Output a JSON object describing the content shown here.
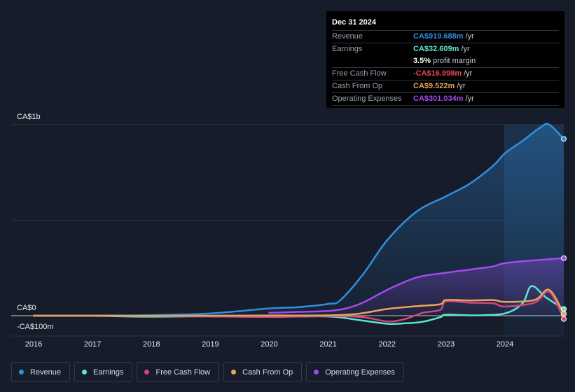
{
  "chart_data": {
    "type": "line",
    "y_top_label": "CA$1b",
    "y_zero_label": "CA$0",
    "y_bottom_label": "-CA$100m",
    "ylim": [
      -100,
      1000
    ],
    "x_ticks": [
      "2016",
      "2017",
      "2018",
      "2019",
      "2020",
      "2021",
      "2022",
      "2023",
      "2024"
    ],
    "series": [
      {
        "name": "Revenue",
        "color": "#2f8fe0",
        "fill": true,
        "points": [
          [
            2016,
            0
          ],
          [
            2017,
            1
          ],
          [
            2018,
            3
          ],
          [
            2019,
            12
          ],
          [
            2020,
            38
          ],
          [
            2020.5,
            45
          ],
          [
            2021,
            62
          ],
          [
            2021.2,
            80
          ],
          [
            2021.6,
            220
          ],
          [
            2022,
            395
          ],
          [
            2022.5,
            545
          ],
          [
            2023,
            625
          ],
          [
            2023.4,
            690
          ],
          [
            2023.8,
            785
          ],
          [
            2024,
            850
          ],
          [
            2024.3,
            915
          ],
          [
            2024.6,
            985
          ],
          [
            2024.75,
            1000
          ],
          [
            2025,
            925
          ]
        ]
      },
      {
        "name": "Earnings",
        "color": "#5ee6cf",
        "fill": false,
        "points": [
          [
            2016,
            0
          ],
          [
            2017,
            -1
          ],
          [
            2018,
            -5
          ],
          [
            2019,
            -3
          ],
          [
            2020,
            -6
          ],
          [
            2021,
            -4
          ],
          [
            2021.5,
            -22
          ],
          [
            2022,
            -42
          ],
          [
            2022.3,
            -40
          ],
          [
            2022.6,
            -32
          ],
          [
            2022.9,
            -8
          ],
          [
            2023,
            5
          ],
          [
            2023.5,
            2
          ],
          [
            2024,
            12
          ],
          [
            2024.3,
            65
          ],
          [
            2024.45,
            155
          ],
          [
            2024.7,
            95
          ],
          [
            2025,
            35
          ]
        ]
      },
      {
        "name": "Free Cash Flow",
        "color": "#d0457f",
        "fill": false,
        "points": [
          [
            2016,
            0
          ],
          [
            2017,
            -1
          ],
          [
            2018,
            -2
          ],
          [
            2019,
            -4
          ],
          [
            2020,
            -6
          ],
          [
            2021,
            -2
          ],
          [
            2021.6,
            -8
          ],
          [
            2022,
            -30
          ],
          [
            2022.3,
            -18
          ],
          [
            2022.6,
            15
          ],
          [
            2022.9,
            30
          ],
          [
            2023,
            75
          ],
          [
            2023.4,
            68
          ],
          [
            2023.8,
            65
          ],
          [
            2024,
            48
          ],
          [
            2024.5,
            68
          ],
          [
            2024.75,
            125
          ],
          [
            2025,
            -17
          ]
        ]
      },
      {
        "name": "Cash From Op",
        "color": "#e8a45c",
        "fill": false,
        "points": [
          [
            2016,
            0
          ],
          [
            2017,
            0
          ],
          [
            2018,
            -1
          ],
          [
            2019,
            0
          ],
          [
            2020,
            1
          ],
          [
            2021,
            2
          ],
          [
            2021.5,
            10
          ],
          [
            2022,
            35
          ],
          [
            2022.5,
            50
          ],
          [
            2022.9,
            60
          ],
          [
            2023,
            82
          ],
          [
            2023.4,
            80
          ],
          [
            2023.8,
            82
          ],
          [
            2024,
            72
          ],
          [
            2024.5,
            82
          ],
          [
            2024.75,
            135
          ],
          [
            2025,
            10
          ]
        ]
      },
      {
        "name": "Operating Expenses",
        "color": "#a24bef",
        "fill": true,
        "points": [
          [
            2020,
            15
          ],
          [
            2020.5,
            20
          ],
          [
            2021,
            25
          ],
          [
            2021.3,
            38
          ],
          [
            2021.6,
            70
          ],
          [
            2022,
            135
          ],
          [
            2022.5,
            200
          ],
          [
            2023,
            225
          ],
          [
            2023.5,
            245
          ],
          [
            2023.8,
            258
          ],
          [
            2024,
            275
          ],
          [
            2024.5,
            290
          ],
          [
            2025,
            301
          ]
        ]
      }
    ]
  },
  "tooltip": {
    "date": "Dec 31 2024",
    "rows": [
      {
        "label": "Revenue",
        "value": "CA$919.688m",
        "unit": "/yr",
        "color": "#2f8fe0"
      },
      {
        "label": "Earnings",
        "value": "CA$32.609m",
        "unit": "/yr",
        "color": "#5ee6cf"
      },
      {
        "label": "",
        "value": "3.5%",
        "unit": "profit margin",
        "color": "#ffffff"
      },
      {
        "label": "Free Cash Flow",
        "value": "-CA$16.998m",
        "unit": "/yr",
        "color": "#e8464c"
      },
      {
        "label": "Cash From Op",
        "value": "CA$9.522m",
        "unit": "/yr",
        "color": "#e8a45c"
      },
      {
        "label": "Operating Expenses",
        "value": "CA$301.034m",
        "unit": "/yr",
        "color": "#a24bef"
      }
    ]
  },
  "legend": [
    {
      "label": "Revenue",
      "color": "#2f8fe0"
    },
    {
      "label": "Earnings",
      "color": "#5ee6cf"
    },
    {
      "label": "Free Cash Flow",
      "color": "#d0457f"
    },
    {
      "label": "Cash From Op",
      "color": "#e8a45c"
    },
    {
      "label": "Operating Expenses",
      "color": "#a24bef"
    }
  ]
}
